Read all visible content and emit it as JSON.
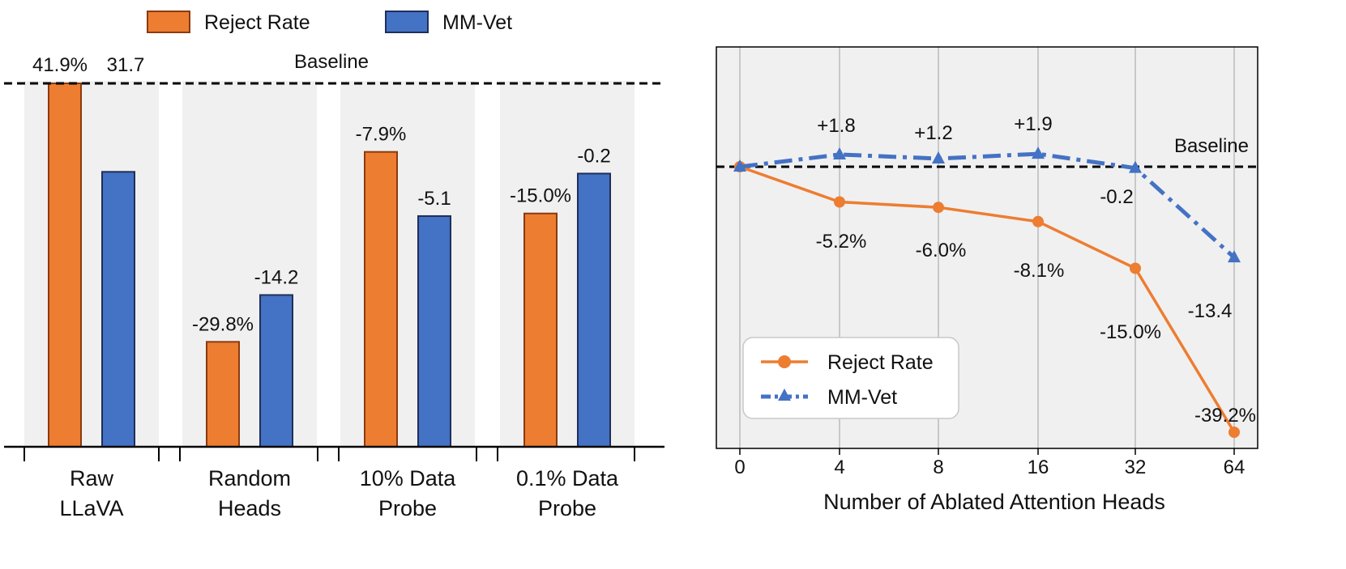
{
  "legend_top": {
    "items": [
      {
        "label": "Reject Rate",
        "color": "#ED7D31"
      },
      {
        "label": "MM-Vet",
        "color": "#4472C4"
      }
    ]
  },
  "colors": {
    "reject": "#ED7D31",
    "reject_edge": "#8B3A0E",
    "mmvet": "#4472C4",
    "mmvet_edge": "#1F2F5A",
    "panel_bg": "#F0F0F0",
    "grid": "#BBBBBB"
  },
  "chart_data": [
    {
      "type": "bar",
      "categories": [
        "Raw\nLLaVA",
        "Random\nHeads",
        "10% Data\nProbe",
        "0.1% Data\nProbe"
      ],
      "series": [
        {
          "name": "Reject Rate",
          "values": [
            41.9,
            12.1,
            34.0,
            26.9
          ],
          "labels": [
            "41.9%",
            "-29.8%",
            "-7.9%",
            "-15.0%"
          ]
        },
        {
          "name": "MM-Vet",
          "values": [
            31.7,
            17.5,
            26.6,
            31.5
          ],
          "labels": [
            "31.7",
            "-14.2",
            "-5.1",
            "-0.2"
          ]
        }
      ],
      "baseline_label": "Baseline",
      "legend_position": "top"
    },
    {
      "type": "line",
      "x": [
        "0",
        "4",
        "8",
        "16",
        "32",
        "64"
      ],
      "xlabel": "Number of Ablated Attention Heads",
      "series": [
        {
          "name": "Reject Rate",
          "values": [
            0,
            -5.2,
            -6.0,
            -8.1,
            -15.0,
            -39.2
          ],
          "labels": [
            "",
            "-5.2%",
            "-6.0%",
            "-8.1%",
            "-15.0%",
            "-39.2%"
          ],
          "style": "solid",
          "marker": "circle"
        },
        {
          "name": "MM-Vet",
          "values": [
            0,
            1.8,
            1.2,
            1.9,
            -0.2,
            -13.4
          ],
          "labels": [
            "",
            "+1.8",
            "+1.2",
            "+1.9",
            "-0.2",
            "-13.4"
          ],
          "style": "dash-dot",
          "marker": "triangle"
        }
      ],
      "baseline_label": "Baseline",
      "grid": true,
      "legend_position": "lower-left"
    }
  ]
}
